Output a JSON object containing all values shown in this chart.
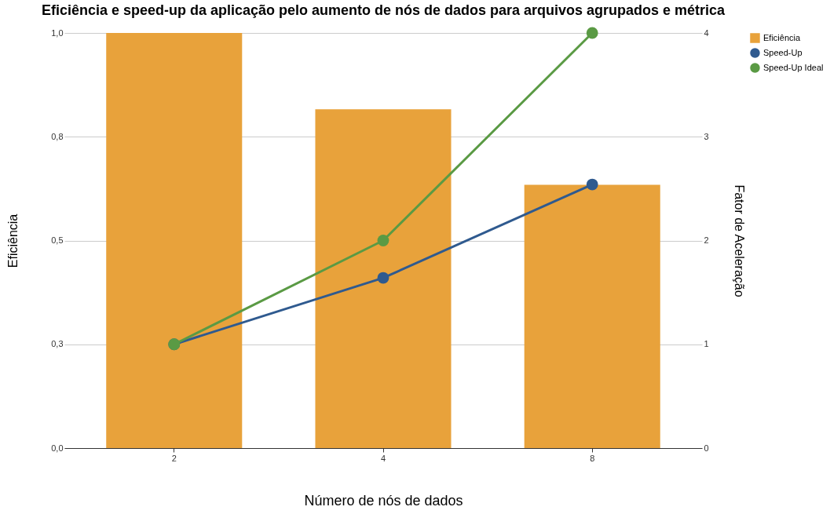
{
  "chart_data": {
    "type": "bar",
    "title": "Eficiência e speed-up da aplicação pelo aumento de nós de dados para arquivos agrupados e métrica",
    "xlabel": "Número de nós de dados",
    "ylabel": "Eficiência",
    "y2label": "Fator de Aceleração",
    "categories": [
      "2",
      "4",
      "8"
    ],
    "series": [
      {
        "name": "Eficiência",
        "color": "#e8a23b",
        "values": [
          1.0,
          0.816,
          0.634
        ]
      },
      {
        "name": "Speed-Up",
        "type": "line",
        "axis": "y2",
        "color": "#2f5a8f",
        "values": [
          1,
          1.64,
          2.54
        ]
      },
      {
        "name": "Speed-Up Ideal",
        "type": "line",
        "axis": "y2",
        "color": "#5a9a44",
        "values": [
          1,
          2,
          4
        ]
      }
    ],
    "ylim": [
      0,
      1
    ],
    "yticks": [
      {
        "value": 0,
        "label": "0,0"
      },
      {
        "value": 0.25,
        "label": "0,3"
      },
      {
        "value": 0.5,
        "label": "0,5"
      },
      {
        "value": 0.75,
        "label": "0,8"
      },
      {
        "value": 1,
        "label": "1,0"
      }
    ],
    "y2lim": [
      0,
      4
    ],
    "y2ticks": [
      0,
      1,
      2,
      3,
      4
    ],
    "grid": "y",
    "legend": "top right",
    "marker": "circle",
    "line_style": "solid"
  }
}
